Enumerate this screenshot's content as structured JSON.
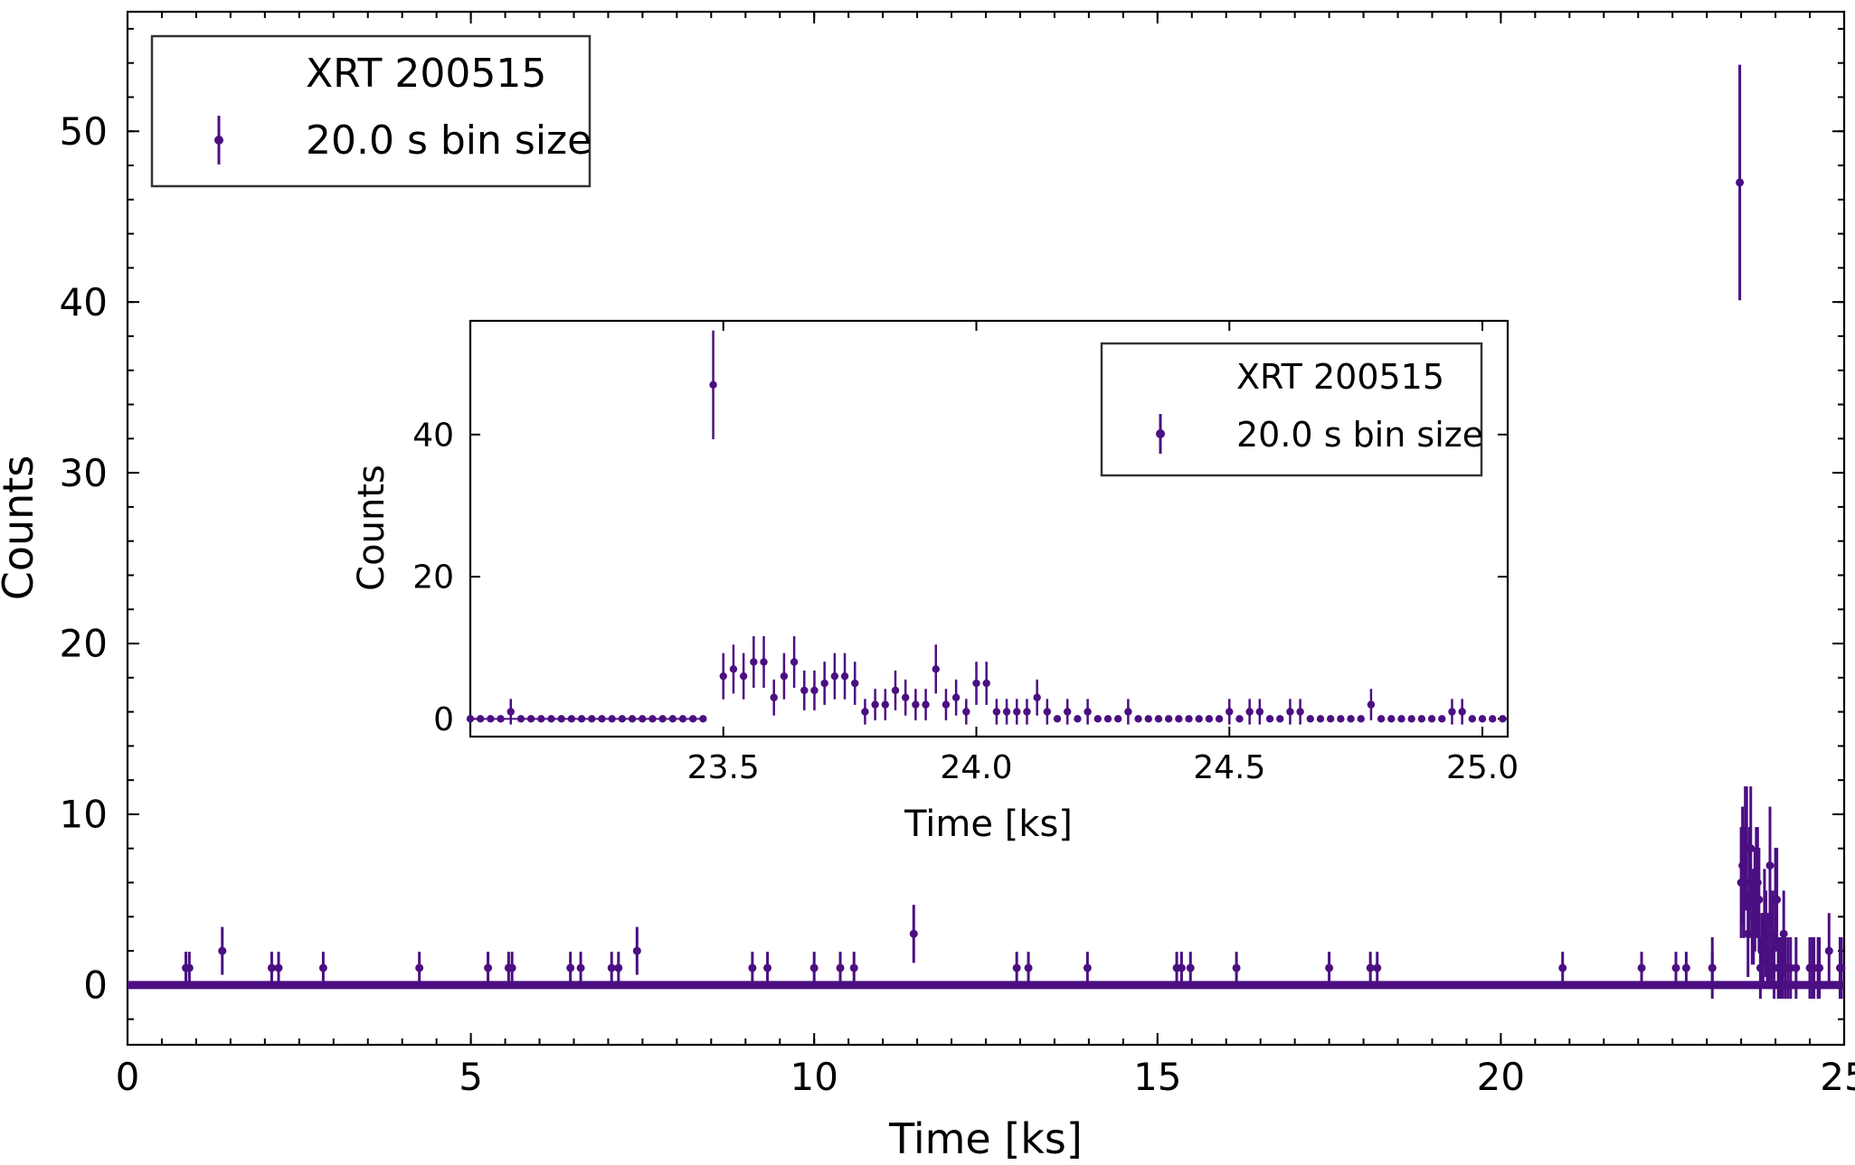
{
  "chart_data": [
    {
      "type": "scatter",
      "panel": "main",
      "title": "",
      "xlabel": "Time [ks]",
      "ylabel": "Counts",
      "xlim": [
        0,
        25
      ],
      "ylim": [
        -3.5,
        57
      ],
      "xticks": [
        0,
        5,
        10,
        15,
        20,
        25
      ],
      "yticks": [
        0,
        10,
        20,
        30,
        40,
        50
      ],
      "x_minor_step": 0.5,
      "y_minor_step": 2,
      "grid": false,
      "legend_position": "top-left",
      "legend": {
        "title": "XRT 200515",
        "label": "20.0 s bin size"
      },
      "series_color": "#4b0f82",
      "series": [
        {
          "x": [
            0.85,
            0.9,
            1.38,
            2.1,
            2.2,
            2.85,
            4.25,
            5.25,
            5.55,
            5.6,
            6.45,
            6.6,
            7.05,
            7.15,
            7.42,
            9.1,
            9.32,
            10.0,
            10.38,
            10.58,
            11.45,
            12.95,
            13.12,
            13.98,
            15.28,
            15.35,
            15.48,
            16.15,
            17.5,
            18.1,
            18.2,
            20.9,
            22.05,
            22.55,
            22.7,
            23.08,
            23.48
          ],
          "y": [
            1,
            1,
            2,
            1,
            1,
            1,
            1,
            1,
            1,
            1,
            1,
            1,
            1,
            1,
            2,
            1,
            1,
            1,
            1,
            1,
            3,
            1,
            1,
            1,
            1,
            1,
            1,
            1,
            1,
            1,
            1,
            1,
            1,
            1,
            1,
            1,
            47
          ],
          "yerr": [
            0.95,
            0.95,
            1.4,
            0.95,
            0.95,
            0.95,
            0.95,
            0.95,
            0.95,
            0.95,
            0.95,
            0.95,
            0.95,
            0.95,
            1.4,
            0.95,
            0.95,
            0.95,
            0.95,
            0.95,
            1.7,
            0.95,
            0.95,
            0.95,
            0.95,
            0.95,
            0.95,
            0.95,
            0.95,
            0.95,
            0.95,
            0.95,
            0.95,
            0.95,
            0.95,
            0.95,
            6.9
          ]
        }
      ]
    },
    {
      "type": "scatter",
      "panel": "inset",
      "title": "",
      "xlabel": "Time [ks]",
      "ylabel": "Counts",
      "xlim": [
        23.0,
        25.05
      ],
      "ylim": [
        -2.5,
        56
      ],
      "xticks": [
        23.5,
        24.0,
        24.5,
        25.0
      ],
      "yticks": [
        0,
        20,
        40
      ],
      "grid": false,
      "legend_position": "top-right",
      "legend": {
        "title": "XRT 200515",
        "label": "20.0 s bin size"
      },
      "series_color": "#4b0f82",
      "series": [
        {
          "x": [
            23.0,
            23.02,
            23.04,
            23.06,
            23.08,
            23.1,
            23.12,
            23.14,
            23.16,
            23.18,
            23.2,
            23.22,
            23.24,
            23.26,
            23.28,
            23.3,
            23.32,
            23.34,
            23.36,
            23.38,
            23.4,
            23.42,
            23.44,
            23.46,
            23.48,
            23.5,
            23.52,
            23.54,
            23.56,
            23.58,
            23.6,
            23.62,
            23.64,
            23.66,
            23.68,
            23.7,
            23.72,
            23.74,
            23.76,
            23.78,
            23.8,
            23.82,
            23.84,
            23.86,
            23.88,
            23.9,
            23.92,
            23.94,
            23.96,
            23.98,
            24.0,
            24.02,
            24.04,
            24.06,
            24.08,
            24.1,
            24.12,
            24.14,
            24.16,
            24.18,
            24.2,
            24.22,
            24.24,
            24.26,
            24.28,
            24.3,
            24.32,
            24.34,
            24.36,
            24.38,
            24.4,
            24.42,
            24.44,
            24.46,
            24.48,
            24.5,
            24.52,
            24.54,
            24.56,
            24.58,
            24.6,
            24.62,
            24.64,
            24.66,
            24.68,
            24.7,
            24.72,
            24.74,
            24.76,
            24.78,
            24.8,
            24.82,
            24.84,
            24.86,
            24.88,
            24.9,
            24.92,
            24.94,
            24.96,
            24.98,
            25.0,
            25.02,
            25.04
          ],
          "y": [
            0,
            0,
            0,
            0,
            1,
            0,
            0,
            0,
            0,
            0,
            0,
            0,
            0,
            0,
            0,
            0,
            0,
            0,
            0,
            0,
            0,
            0,
            0,
            0,
            47,
            6,
            7,
            6,
            8,
            8,
            3,
            6,
            8,
            4,
            4,
            5,
            6,
            6,
            5,
            1,
            2,
            2,
            4,
            3,
            2,
            2,
            7,
            2,
            3,
            1,
            5,
            5,
            1,
            1,
            1,
            1,
            3,
            1,
            0,
            1,
            0,
            1,
            0,
            0,
            0,
            1,
            0,
            0,
            0,
            0,
            0,
            0,
            0,
            0,
            0,
            1,
            0,
            1,
            1,
            0,
            0,
            1,
            1,
            0,
            0,
            0,
            0,
            0,
            0,
            2,
            0,
            0,
            0,
            0,
            0,
            0,
            0,
            1,
            1,
            0,
            0,
            0,
            0
          ]
        }
      ]
    }
  ]
}
